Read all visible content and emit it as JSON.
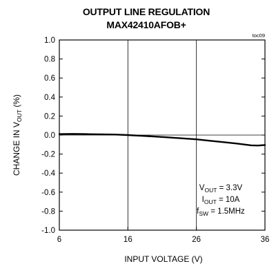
{
  "chart_data": {
    "type": "line",
    "title": "OUTPUT LINE REGULATION",
    "subtitle": "MAX42410AFOB+",
    "figure_id": "toc09",
    "xlabel": "INPUT VOLTAGE (V)",
    "ylabel": "CHANGE IN V",
    "ylabel_sub": "OUT",
    "ylabel_tail": " (%)",
    "xlim": [
      6,
      36
    ],
    "ylim": [
      -1.0,
      1.0
    ],
    "x_ticks": [
      "6",
      "16",
      "26",
      "36"
    ],
    "y_ticks": [
      "1.0",
      "0.8",
      "0.6",
      "0.4",
      "0.2",
      "0.0",
      "-0.2",
      "-0.4",
      "-0.6",
      "-0.8",
      "-1.0"
    ],
    "grid": true,
    "conditions": [
      {
        "main": "V",
        "sub": "OUT",
        "value": " = 3.3V"
      },
      {
        "main": "I",
        "sub": "OUT",
        "value": " = 10A"
      },
      {
        "main": "f",
        "sub": "SW",
        "value": " = 1.5MHz"
      }
    ],
    "series": [
      {
        "x": [
          6,
          8,
          10,
          12,
          14,
          16,
          18,
          20,
          22,
          24,
          26,
          28,
          30,
          32,
          34,
          35,
          36
        ],
        "y": [
          0.01,
          0.012,
          0.01,
          0.008,
          0.006,
          0.0,
          -0.008,
          -0.016,
          -0.025,
          -0.035,
          -0.045,
          -0.06,
          -0.075,
          -0.09,
          -0.108,
          -0.11,
          -0.105
        ]
      }
    ]
  }
}
